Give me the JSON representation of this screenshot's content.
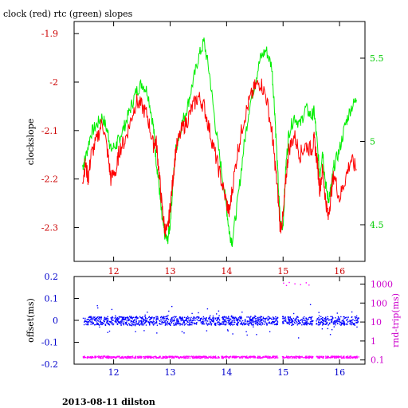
{
  "chart_data": [
    {
      "type": "line",
      "title": "clock (red) rtc (green) slopes",
      "ylabel": "clockslope",
      "xlim": [
        11.3,
        16.45
      ],
      "ylim": [
        -2.37,
        -1.875
      ],
      "x_ticks": [
        "12",
        "13",
        "14",
        "15",
        "16"
      ],
      "y_ticks": [
        "-1.9",
        "-2",
        "-2.1",
        "-2.2",
        "-2.3"
      ],
      "y2lim": [
        4.28,
        5.72
      ],
      "y2_ticks": [
        "5.5",
        "5",
        "4.5"
      ],
      "grid": false,
      "colors": {
        "clock": "#ff0000",
        "rtc": "#00ee00",
        "x_tick_labels": "#cc0000",
        "y_tick_labels": "#cc0000",
        "y2_tick_labels": "#00cc00"
      },
      "series": [
        {
          "key": "clock",
          "x": [
            11.45,
            11.5,
            11.55,
            11.6,
            11.7,
            11.8,
            11.9,
            11.95,
            12.05,
            12.1,
            12.2,
            12.3,
            12.4,
            12.5,
            12.6,
            12.7,
            12.75,
            12.8,
            12.85,
            12.9,
            12.95,
            13.0,
            13.05,
            13.1,
            13.2,
            13.3,
            13.4,
            13.5,
            13.6,
            13.7,
            13.8,
            13.9,
            14.0,
            14.05,
            14.1,
            14.2,
            14.3,
            14.4,
            14.5,
            14.6,
            14.7,
            14.8,
            14.85,
            14.9,
            14.95,
            15.0,
            15.05,
            15.1,
            15.2,
            15.3,
            15.4,
            15.5,
            15.55,
            15.6,
            15.65,
            15.7,
            15.75,
            15.8,
            15.85,
            15.9,
            16.0,
            16.1,
            16.2,
            16.3
          ],
          "values": [
            -2.2,
            -2.17,
            -2.2,
            -2.15,
            -2.12,
            -2.08,
            -2.15,
            -2.2,
            -2.18,
            -2.14,
            -2.12,
            -2.08,
            -2.04,
            -2.05,
            -2.07,
            -2.13,
            -2.12,
            -2.18,
            -2.25,
            -2.3,
            -2.31,
            -2.26,
            -2.2,
            -2.14,
            -2.1,
            -2.08,
            -2.05,
            -2.03,
            -2.05,
            -2.1,
            -2.15,
            -2.2,
            -2.25,
            -2.27,
            -2.22,
            -2.14,
            -2.08,
            -2.04,
            -2.01,
            -2.0,
            -2.03,
            -2.1,
            -2.16,
            -2.22,
            -2.3,
            -2.28,
            -2.2,
            -2.14,
            -2.11,
            -2.15,
            -2.13,
            -2.14,
            -2.12,
            -2.16,
            -2.22,
            -2.18,
            -2.24,
            -2.28,
            -2.23,
            -2.19,
            -2.24,
            -2.2,
            -2.16,
            -2.18
          ]
        },
        {
          "key": "rtc",
          "x": [
            11.45,
            11.5,
            11.6,
            11.7,
            11.8,
            11.9,
            11.95,
            12.05,
            12.1,
            12.2,
            12.3,
            12.4,
            12.5,
            12.6,
            12.7,
            12.75,
            12.8,
            12.85,
            12.9,
            12.95,
            13.0,
            13.05,
            13.1,
            13.2,
            13.3,
            13.4,
            13.5,
            13.6,
            13.7,
            13.8,
            13.9,
            14.0,
            14.05,
            14.1,
            14.2,
            14.3,
            14.4,
            14.5,
            14.6,
            14.7,
            14.8,
            14.85,
            14.9,
            14.95,
            15.0,
            15.05,
            15.1,
            15.2,
            15.3,
            15.4,
            15.5,
            15.55,
            15.6,
            15.65,
            15.7,
            15.75,
            15.8,
            15.85,
            15.9,
            16.0,
            16.1,
            16.2,
            16.3
          ],
          "values": [
            4.85,
            4.9,
            5.05,
            5.1,
            5.15,
            5.05,
            4.95,
            4.98,
            5.02,
            5.1,
            5.2,
            5.3,
            5.35,
            5.3,
            5.1,
            4.9,
            4.75,
            4.55,
            4.45,
            4.4,
            4.5,
            4.75,
            4.95,
            5.1,
            5.2,
            5.35,
            5.5,
            5.6,
            5.4,
            5.1,
            4.85,
            4.6,
            4.45,
            4.4,
            4.65,
            4.95,
            5.2,
            5.35,
            5.5,
            5.55,
            5.45,
            5.2,
            4.85,
            4.5,
            4.5,
            4.85,
            5.05,
            5.15,
            5.1,
            5.2,
            5.15,
            5.18,
            5.0,
            4.8,
            4.95,
            4.75,
            4.65,
            4.72,
            4.85,
            4.95,
            5.1,
            5.2,
            5.25
          ]
        }
      ]
    },
    {
      "type": "scatter",
      "xlim": [
        11.3,
        16.45
      ],
      "ylabel": "offset(ms)",
      "ylim": [
        -0.2,
        0.2
      ],
      "y_ticks": [
        "0.2",
        "0.1",
        "0",
        "-0.1",
        "-0.2"
      ],
      "y2label": "rnd-trip(ms)",
      "y2_scale": "log",
      "y2lim": [
        0.06,
        2500
      ],
      "y2_ticks": [
        "1000",
        "100",
        "10",
        "1",
        "0.1"
      ],
      "x_ticks": [
        "12",
        "13",
        "14",
        "15",
        "16"
      ],
      "colors": {
        "offset": "#0000ff",
        "roundtrip": "#ff00ff",
        "x_tick_labels": "#0000cc",
        "y_tick_labels": "#0000cc",
        "y2_tick_labels": "#cc00cc"
      },
      "series": [
        {
          "key": "offset",
          "band_center": 0.0,
          "band_spread": 0.02,
          "x_range": [
            11.45,
            16.33
          ],
          "gaps": [
            [
              14.9,
              14.98
            ],
            [
              15.52,
              15.58
            ]
          ]
        },
        {
          "key": "roundtrip",
          "typical": 0.15,
          "x_range": [
            11.45,
            16.33
          ],
          "gaps": [
            [
              14.9,
              14.98
            ],
            [
              15.52,
              15.58
            ]
          ],
          "outliers_x": [
            15.0,
            15.05,
            15.1,
            15.2,
            15.3,
            15.4,
            15.45
          ],
          "outliers_y": [
            1200,
            900,
            1300,
            1100,
            1000,
            1250,
            950
          ]
        }
      ]
    }
  ],
  "footer": "2013-08-11 dilston"
}
